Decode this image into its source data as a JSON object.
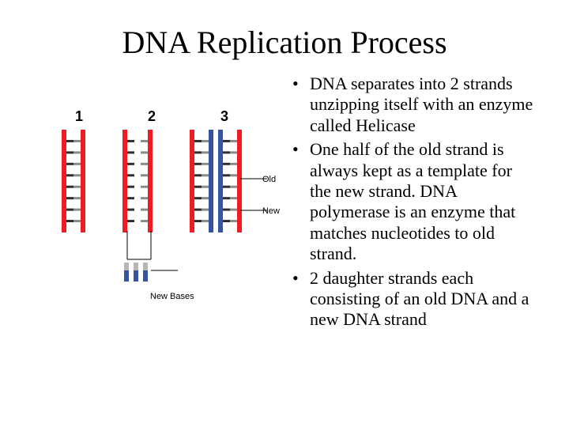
{
  "title": "DNA Replication Process",
  "bullets": [
    "DNA separates into 2 strands unzipping itself with an enzyme called Helicase",
    "One half of the old strand is always kept as a template for the new strand. DNA polymerase is an enzyme that matches nucleotides to old strand.",
    "2 daughter strands each consisting of an old DNA and a new DNA strand"
  ],
  "diagram": {
    "type": "infographic",
    "stage_numbers": [
      "1",
      "2",
      "3"
    ],
    "label_old": "Old",
    "label_new": "New",
    "label_new_bases": "New Bases",
    "colors": {
      "old_strand": "#ee1c23",
      "new_strand": "#3853a4",
      "rung_left": "#2e2e2e",
      "rung_right": "#8a8a8a",
      "new_base_top": "#b6b6b6",
      "line": "#000000",
      "background": "#ffffff"
    },
    "strand_width": 6,
    "rung_height": 3,
    "rung_count": 8,
    "ladder_height": 130,
    "ladder_gap": 18,
    "new_base_count": 3
  }
}
